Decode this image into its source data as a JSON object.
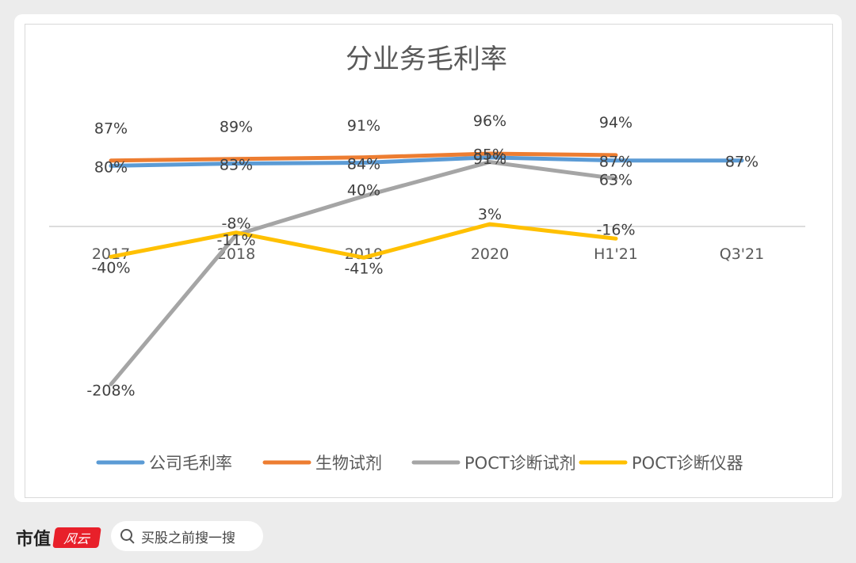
{
  "chart_data": {
    "type": "line",
    "title": "分业务毛利率",
    "categories": [
      "2017",
      "2018",
      "2019",
      "2020",
      "H1'21",
      "Q3'21"
    ],
    "ylim": [
      -220,
      110
    ],
    "grid": false,
    "legend_position": "bottom",
    "series": [
      {
        "name": "公司毛利率",
        "color": "#5b9bd5",
        "values": [
          80,
          83,
          84,
          91,
          87,
          87
        ],
        "labels": [
          "80%",
          "83%",
          "84%",
          "91%",
          "87%",
          "87%"
        ]
      },
      {
        "name": "生物试剂",
        "color": "#ed7d31",
        "values": [
          87,
          89,
          91,
          96,
          94,
          null
        ],
        "labels": [
          "87%",
          "89%",
          "91%",
          "96%",
          "94%",
          ""
        ]
      },
      {
        "name": "POCT诊断试剂",
        "color": "#a5a5a5",
        "values": [
          -208,
          -11,
          40,
          85,
          63,
          null
        ],
        "labels": [
          "-208%",
          "-11%",
          "40%",
          "85%",
          "63%",
          ""
        ]
      },
      {
        "name": "POCT诊断仪器",
        "color": "#ffc000",
        "values": [
          -40,
          -8,
          -41,
          3,
          -16,
          null
        ],
        "labels": [
          "-40%",
          "-8%",
          "-41%",
          "3%",
          "-16%",
          ""
        ]
      }
    ]
  },
  "footer": {
    "brand": "市值",
    "brand_seal": "风云",
    "search_text": "买股之前搜一搜"
  }
}
